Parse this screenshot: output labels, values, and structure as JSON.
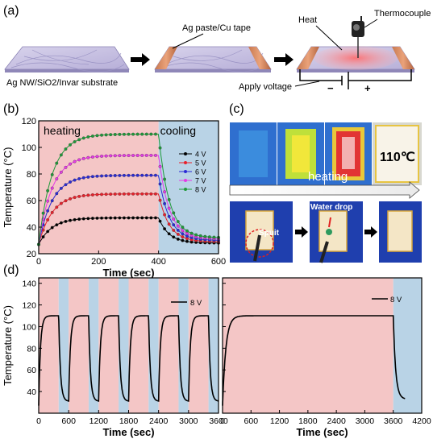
{
  "panel_a": {
    "label": "(a)",
    "substrate_label": "Ag NW/SiO2/Invar substrate",
    "paste_label": "Ag paste/Cu tape",
    "heat_label": "Heat",
    "thermocouple_label": "Thermocouple",
    "voltage_label": "Apply voltage",
    "minus_sign": "−",
    "plus_sign": "+"
  },
  "panel_b": {
    "label": "(b)",
    "heating_label": "heating",
    "cooling_label": "cooling",
    "colors": {
      "heating_bg": "#f4c6c6",
      "cooling_bg": "#b9d3e6"
    }
  },
  "panel_c": {
    "label": "(c)",
    "temp_label": "110℃",
    "heating_label": "heating",
    "spuit_label": "Spuit",
    "water_label": "Water drop"
  },
  "panel_d": {
    "label": "(d)"
  },
  "chart_data": [
    {
      "type": "line",
      "xlabel": "Time (sec)",
      "ylabel": "Temperature (°C)",
      "xlim": [
        0,
        600
      ],
      "ylim": [
        20,
        120
      ],
      "xticks": [
        0,
        200,
        400,
        600
      ],
      "yticks": [
        20,
        40,
        60,
        80,
        100,
        120
      ],
      "legend": "right",
      "heating_end": 400,
      "series": [
        {
          "name": "4 V",
          "color": "#000000",
          "plateau": 47
        },
        {
          "name": "5 V",
          "color": "#e8212b",
          "plateau": 65
        },
        {
          "name": "6 V",
          "color": "#2b2bd6",
          "plateau": 79
        },
        {
          "name": "7 V",
          "color": "#e63ae6",
          "plateau": 94
        },
        {
          "name": "8 V",
          "color": "#1f9a3a",
          "plateau": 110
        }
      ],
      "start_temp": 27,
      "end_temps": [
        28,
        29,
        30,
        31,
        32
      ]
    },
    {
      "type": "line",
      "xlabel": "Time (sec)",
      "ylabel": "Temperature (°C)",
      "xlim": [
        0,
        3600
      ],
      "ylim": [
        20,
        145
      ],
      "xticks": [
        0,
        600,
        1200,
        1800,
        2400,
        3000,
        3600
      ],
      "yticks": [
        40,
        60,
        80,
        100,
        120,
        140
      ],
      "series": [
        {
          "name": "8 V",
          "color": "#000000"
        }
      ],
      "cycle_period": 600,
      "heating_duration": 400,
      "plateau": 110,
      "low": 31
    },
    {
      "type": "line",
      "xlabel": "Time (sec)",
      "ylabel": "",
      "xlim": [
        0,
        4200
      ],
      "ylim": [
        20,
        145
      ],
      "xticks": [
        0,
        600,
        1200,
        1800,
        2400,
        3000,
        3600,
        4200
      ],
      "series": [
        {
          "name": "8 V",
          "color": "#000000"
        }
      ],
      "heating_end": 3600,
      "plateau": 110,
      "low": 33
    }
  ]
}
